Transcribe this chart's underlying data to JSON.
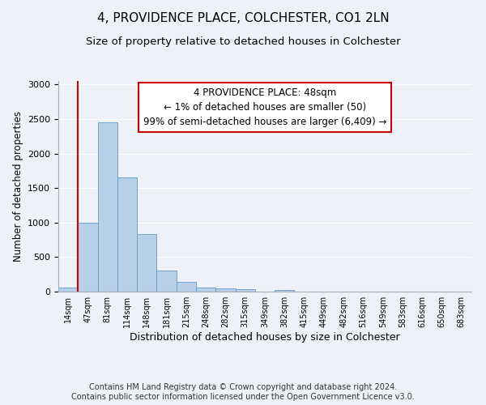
{
  "title": "4, PROVIDENCE PLACE, COLCHESTER, CO1 2LN",
  "subtitle": "Size of property relative to detached houses in Colchester",
  "xlabel": "Distribution of detached houses by size in Colchester",
  "ylabel": "Number of detached properties",
  "footer_line1": "Contains HM Land Registry data © Crown copyright and database right 2024.",
  "footer_line2": "Contains public sector information licensed under the Open Government Licence v3.0.",
  "annotation_line1": "4 PROVIDENCE PLACE: 48sqm",
  "annotation_line2": "← 1% of detached houses are smaller (50)",
  "annotation_line3": "99% of semi-detached houses are larger (6,409) →",
  "bar_labels": [
    "14sqm",
    "47sqm",
    "81sqm",
    "114sqm",
    "148sqm",
    "181sqm",
    "215sqm",
    "248sqm",
    "282sqm",
    "315sqm",
    "349sqm",
    "382sqm",
    "415sqm",
    "449sqm",
    "482sqm",
    "516sqm",
    "549sqm",
    "583sqm",
    "616sqm",
    "650sqm",
    "683sqm"
  ],
  "bar_values": [
    55,
    1000,
    2450,
    1650,
    830,
    310,
    135,
    60,
    50,
    40,
    5,
    25,
    0,
    0,
    0,
    0,
    0,
    0,
    0,
    0,
    0
  ],
  "bar_color": "#b8cfe8",
  "bar_edge_color": "#6699cc",
  "vline_x_index": 0.5,
  "ylim": [
    0,
    3050
  ],
  "yticks": [
    0,
    500,
    1000,
    1500,
    2000,
    2500,
    3000
  ],
  "background_color": "#eef2f8",
  "plot_bg_color": "#eef2f8",
  "grid_color": "#ffffff",
  "annotation_box_color": "#cc0000",
  "title_fontsize": 11,
  "subtitle_fontsize": 9.5,
  "ylabel_fontsize": 8.5,
  "xlabel_fontsize": 9,
  "tick_fontsize": 7,
  "footer_fontsize": 7,
  "ann_fontsize": 8.5
}
